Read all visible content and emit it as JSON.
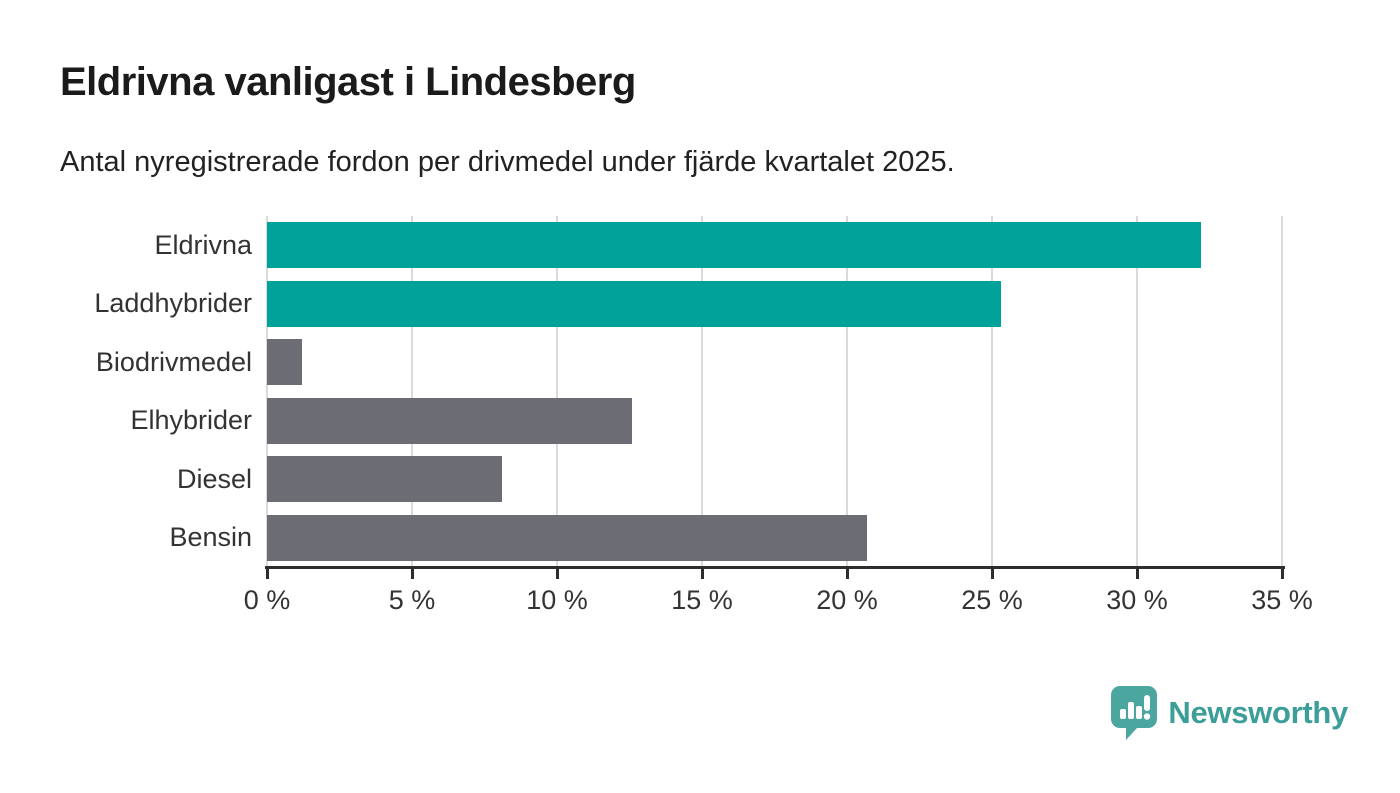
{
  "header": {
    "title": "Eldrivna vanligast i Lindesberg",
    "subtitle": "Antal nyregistrerade fordon per drivmedel under fjärde kvartalet 2025."
  },
  "chart_data": {
    "type": "bar",
    "orientation": "horizontal",
    "title": "Eldrivna vanligast i Lindesberg",
    "subtitle": "Antal nyregistrerade fordon per drivmedel under fjärde kvartalet 2025.",
    "categories": [
      "Eldrivna",
      "Laddhybrider",
      "Biodrivmedel",
      "Elhybrider",
      "Diesel",
      "Bensin"
    ],
    "values": [
      32.2,
      25.3,
      1.2,
      12.6,
      8.1,
      20.7
    ],
    "unit": "%",
    "xlabel": "",
    "ylabel": "",
    "xlim": [
      0,
      35
    ],
    "x_ticks": [
      0,
      5,
      10,
      15,
      20,
      25,
      30,
      35
    ],
    "x_tick_labels": [
      "0 %",
      "5 %",
      "10 %",
      "15 %",
      "20 %",
      "25 %",
      "30 %",
      "35 %"
    ],
    "grid": "vertical-only",
    "legend": "none",
    "bar_colors": [
      "#00A29A",
      "#00A29A",
      "#6C6C75",
      "#6C6C75",
      "#6C6C75",
      "#6C6C75"
    ],
    "highlight_color": "#00A29A",
    "default_color": "#6C6C75",
    "gridline_color": "#dadada",
    "axis_color": "#2d2d2d"
  },
  "footer": {
    "brand": "Newsworthy",
    "brand_text_color": "#3C9E99",
    "brand_mark_color": "#4BA6A0"
  }
}
